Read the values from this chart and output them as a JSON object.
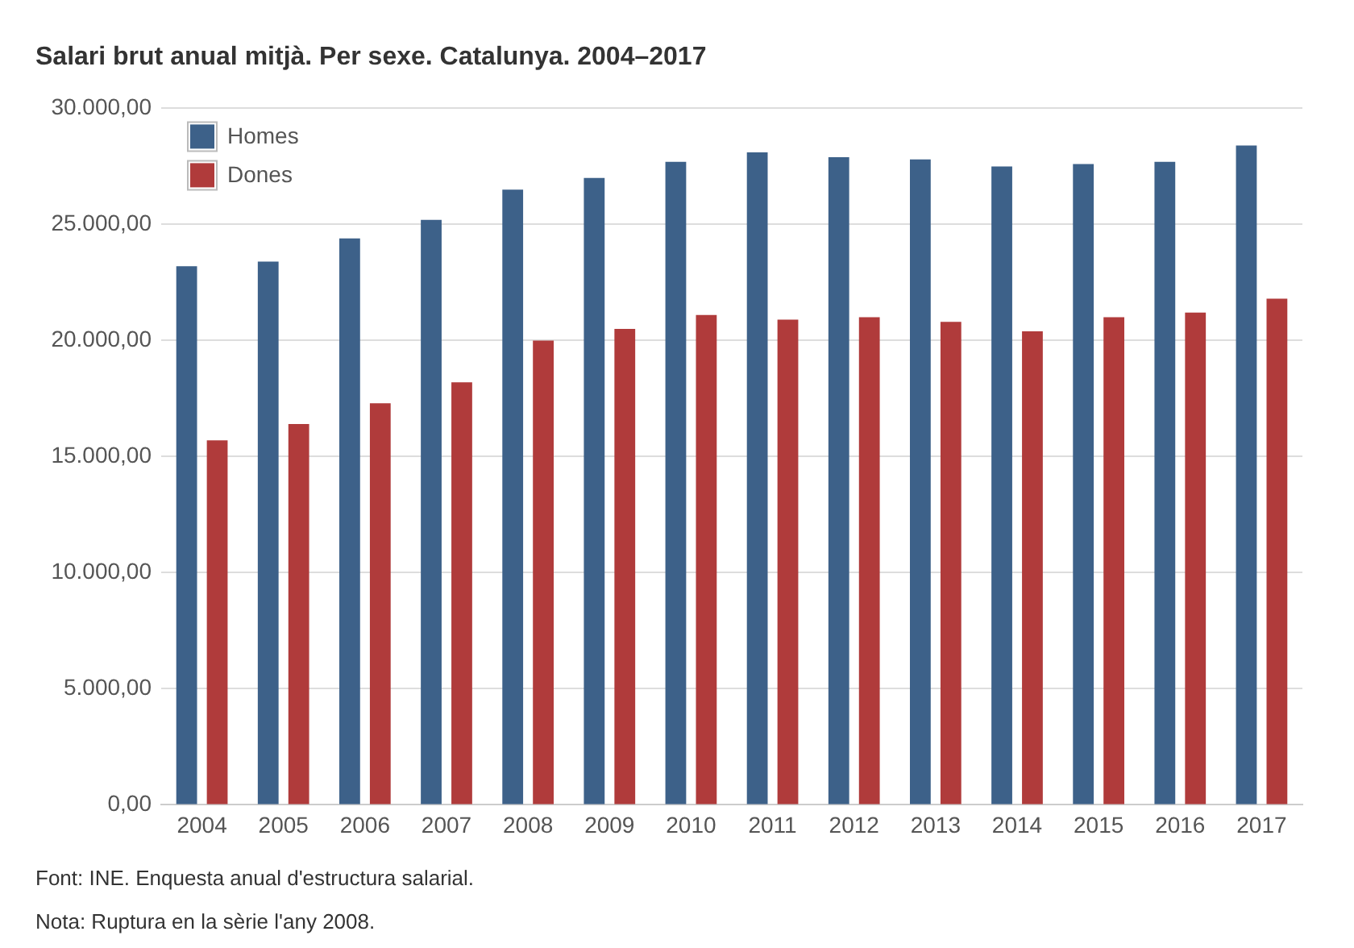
{
  "chart_data": {
    "type": "bar",
    "title": "Salari brut anual mitjà. Per sexe. Catalunya. 2004–2017",
    "categories": [
      "2004",
      "2005",
      "2006",
      "2007",
      "2008",
      "2009",
      "2010",
      "2011",
      "2012",
      "2013",
      "2014",
      "2015",
      "2016",
      "2017"
    ],
    "series": [
      {
        "name": "Homes",
        "color": "#3d6189",
        "values": [
          23200,
          23400,
          24400,
          25200,
          26500,
          27000,
          27700,
          28100,
          27900,
          27800,
          27500,
          27600,
          27700,
          28400
        ]
      },
      {
        "name": "Dones",
        "color": "#b03b3b",
        "values": [
          15700,
          16400,
          17300,
          18200,
          20000,
          20500,
          21100,
          20900,
          21000,
          20800,
          20400,
          21000,
          21200,
          21800
        ]
      }
    ],
    "ylim": [
      0,
      30000
    ],
    "yticks": [
      {
        "value": 0,
        "label": "0,00"
      },
      {
        "value": 5000,
        "label": "5.000,00"
      },
      {
        "value": 10000,
        "label": "10.000,00"
      },
      {
        "value": 15000,
        "label": "15.000,00"
      },
      {
        "value": 20000,
        "label": "20.000,00"
      },
      {
        "value": 25000,
        "label": "25.000,00"
      },
      {
        "value": 30000,
        "label": "30.000,00"
      }
    ],
    "grid": "y",
    "legend": "top left",
    "annotations": [
      "Font: INE. Enquesta anual d'estructura salarial.",
      "Nota: Ruptura en la sèrie l'any 2008."
    ]
  }
}
